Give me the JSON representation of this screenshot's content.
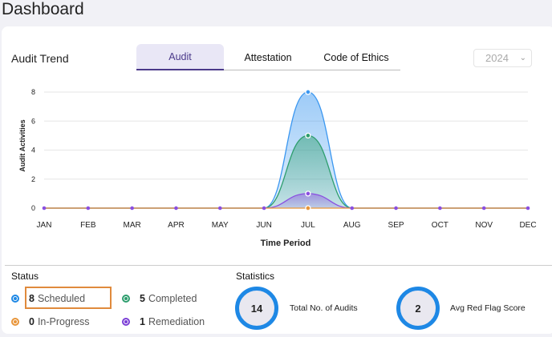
{
  "page": {
    "title": "Dashboard"
  },
  "trend": {
    "title": "Audit Trend",
    "tabs": [
      "Audit",
      "Attestation",
      "Code of Ethics"
    ],
    "selected_tab": "Audit",
    "year": "2024"
  },
  "chart_data": {
    "type": "area",
    "categories": [
      "JAN",
      "FEB",
      "MAR",
      "APR",
      "MAY",
      "JUN",
      "JUL",
      "AUG",
      "SEP",
      "OCT",
      "NOV",
      "DEC"
    ],
    "xlabel": "Time Period",
    "ylabel": "Audit Activities",
    "ylim": [
      0,
      8
    ],
    "yticks": [
      0,
      2,
      4,
      6,
      8
    ],
    "grid": true,
    "series": [
      {
        "name": "Scheduled",
        "color": "#3b97f0",
        "values": [
          0,
          0,
          0,
          0,
          0,
          0,
          8,
          0,
          0,
          0,
          0,
          0
        ]
      },
      {
        "name": "Completed",
        "color": "#2e9e6e",
        "values": [
          0,
          0,
          0,
          0,
          0,
          0,
          5,
          0,
          0,
          0,
          0,
          0
        ]
      },
      {
        "name": "Remediation",
        "color": "#8a4fe0",
        "values": [
          0,
          0,
          0,
          0,
          0,
          0,
          1,
          0,
          0,
          0,
          0,
          0
        ]
      },
      {
        "name": "In-Progress",
        "color": "#e8953a",
        "values": [
          0,
          0,
          0,
          0,
          0,
          0,
          0,
          0,
          0,
          0,
          0,
          0
        ]
      }
    ]
  },
  "status": {
    "title": "Status",
    "items": [
      {
        "count": "8",
        "label": "Scheduled",
        "color": "#1e88e5"
      },
      {
        "count": "5",
        "label": "Completed",
        "color": "#2e9e6e"
      },
      {
        "count": "0",
        "label": "In-Progress",
        "color": "#e8953a"
      },
      {
        "count": "1",
        "label": "Remediation",
        "color": "#7b3fd6"
      }
    ]
  },
  "statistics": {
    "title": "Statistics",
    "total_audits": "14",
    "total_label": "Total No. of Audits",
    "avg_red_flag": "2",
    "avg_label": "Avg Red Flag Score"
  }
}
